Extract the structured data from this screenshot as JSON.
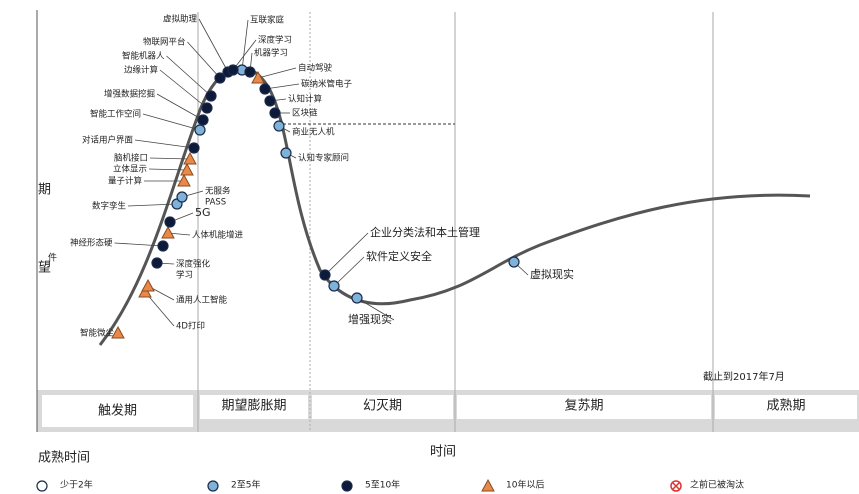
{
  "y_axis_label": [
    "期",
    "望"
  ],
  "stray_text": "件",
  "x_axis_label": "时间",
  "date_note": "截止到2017年7月",
  "phases": [
    "触发期",
    "期望膨胀期",
    "幻灭期",
    "复苏期",
    "成熟期"
  ],
  "legend": {
    "title": "成熟时间",
    "items": [
      "少于2年",
      "2至5年",
      "5至10年",
      "10年以后",
      "之前已被淘汰"
    ]
  },
  "nodes": [
    {
      "label": "智能微尘",
      "maturity": 3
    },
    {
      "label": "4D打印",
      "maturity": 3
    },
    {
      "label": "通用人工智能",
      "maturity": 3
    },
    {
      "label": [
        "深度强化",
        "学习"
      ],
      "maturity": 2
    },
    {
      "label": "人体机能增进",
      "maturity": 3
    },
    {
      "label": "神经形态硬",
      "maturity": 2
    },
    {
      "label": "5G",
      "maturity": 2
    },
    {
      "label": "数字孪生",
      "maturity": 1
    },
    {
      "label": [
        "无服务",
        "PASS"
      ],
      "maturity": 1
    },
    {
      "label": "量子计算",
      "maturity": 3
    },
    {
      "label": "立体显示",
      "maturity": 3
    },
    {
      "label": "脑机接口",
      "maturity": 3
    },
    {
      "label": "对话用户界面",
      "maturity": 2
    },
    {
      "label": "智能工作空间",
      "maturity": 1
    },
    {
      "label": "增强数据挖掘",
      "maturity": 2
    },
    {
      "label": "边缘计算",
      "maturity": 2
    },
    {
      "label": "智能机器人",
      "maturity": 2
    },
    {
      "label": "物联网平台",
      "maturity": 2
    },
    {
      "label": "虚拟助理",
      "maturity": 2
    },
    {
      "label": "互联家庭",
      "maturity": 1
    },
    {
      "label": "深度学习",
      "maturity": 2
    },
    {
      "label": "机器学习",
      "maturity": 2
    },
    {
      "label": "自动驾驶",
      "maturity": 3
    },
    {
      "label": "碳纳米管电子",
      "maturity": 2
    },
    {
      "label": "认知计算",
      "maturity": 2
    },
    {
      "label": "区块链",
      "maturity": 2
    },
    {
      "label": "商业无人机",
      "maturity": 1
    },
    {
      "label": "认知专家顾问",
      "maturity": 1
    },
    {
      "label": "企业分类法和本土管理",
      "maturity": 2
    },
    {
      "label": "软件定义安全",
      "maturity": 1
    },
    {
      "label": "增强现实",
      "maturity": 1
    },
    {
      "label": "虚拟现实",
      "maturity": 1
    }
  ]
}
